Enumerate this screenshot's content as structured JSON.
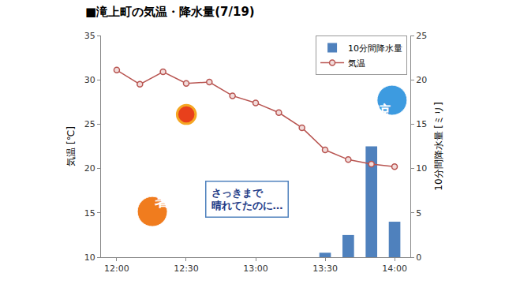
{
  "chart_data": {
    "type": "bar",
    "title": "■滝上町の気温・降水量(7/19)",
    "categories": [
      "12:00",
      null,
      null,
      "12:30",
      null,
      null,
      "13:00",
      null,
      null,
      "13:30",
      null,
      null,
      "14:00"
    ],
    "series": [
      {
        "name": "10分間降水量",
        "type": "bar",
        "axis": "y2",
        "color": "#4f81bd",
        "values": [
          0,
          0,
          0,
          0,
          0,
          0,
          0,
          0,
          0,
          0.5,
          2.5,
          12.5,
          4.0
        ]
      },
      {
        "name": "気温",
        "type": "line",
        "color": "#b85450",
        "marker": "circle",
        "values": [
          31.1,
          29.5,
          30.9,
          29.6,
          29.75,
          28.2,
          27.4,
          26.3,
          24.6,
          22.1,
          21.0,
          20.5,
          20.2
        ]
      }
    ],
    "y_label": "気温 [℃]",
    "y2_label": "10分間降水量 [ミリ]",
    "ylim": [
      10,
      35
    ],
    "yticks": [
      10,
      15,
      20,
      25,
      30,
      35
    ],
    "y2lim": [
      0,
      25
    ],
    "y2ticks": [
      0,
      5,
      10,
      15,
      20,
      25
    ],
    "grid": false,
    "legend": "upper right",
    "annotations": [
      "暑",
      "涼",
      "さっきまで\n晴れてたのに…"
    ]
  }
}
